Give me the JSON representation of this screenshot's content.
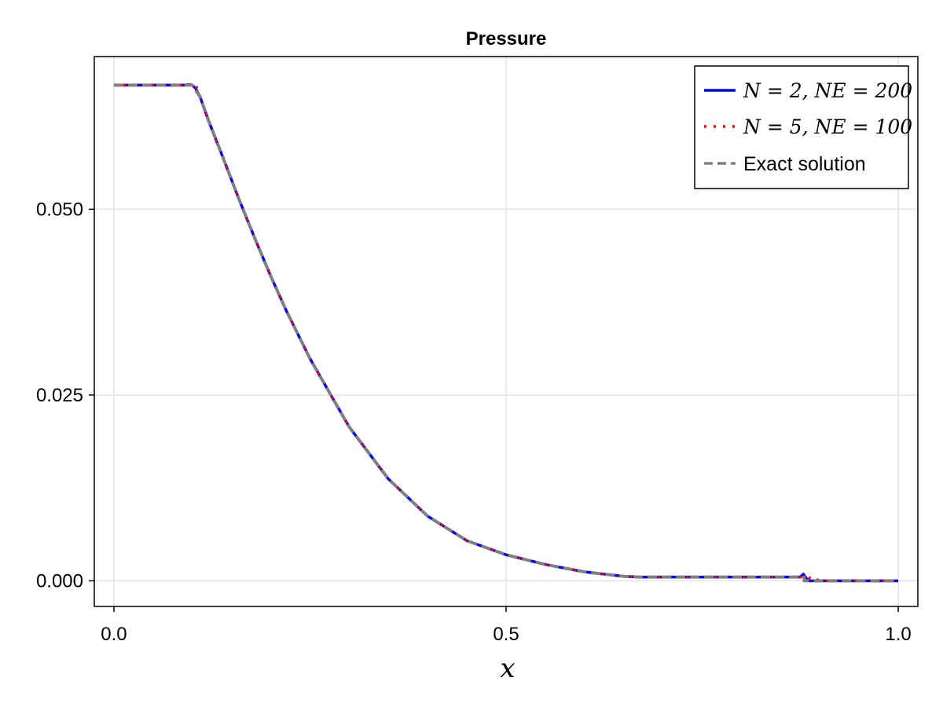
{
  "chart_data": {
    "type": "line",
    "title": "Pressure",
    "xlabel": "x",
    "ylabel": "",
    "xlim": [
      -0.025,
      1.025
    ],
    "ylim": [
      -0.00345,
      0.07055
    ],
    "xticks": [
      0.0,
      0.5,
      1.0
    ],
    "xtick_labels": [
      "0.0",
      "0.5",
      "1.0"
    ],
    "yticks": [
      0.0,
      0.025,
      0.05
    ],
    "ytick_labels": [
      "0.000",
      "0.025",
      "0.050"
    ],
    "grid": true,
    "legend_position": "top-right",
    "series": [
      {
        "name": "N = 2, NE = 200",
        "color": "#0000ff",
        "style": "solid",
        "x": [
          0.0,
          0.09,
          0.095,
          0.1,
          0.104,
          0.11,
          0.12,
          0.14,
          0.16,
          0.18,
          0.2,
          0.22,
          0.25,
          0.3,
          0.35,
          0.4,
          0.45,
          0.5,
          0.55,
          0.6,
          0.65,
          0.67,
          0.7,
          0.8,
          0.875,
          0.879,
          0.883,
          0.887,
          0.9,
          1.0
        ],
        "y": [
          0.0667,
          0.0667,
          0.0668,
          0.0667,
          0.0663,
          0.0651,
          0.0621,
          0.0567,
          0.0512,
          0.046,
          0.041,
          0.0363,
          0.0299,
          0.0207,
          0.0137,
          0.0087,
          0.0054,
          0.0035,
          0.0022,
          0.0012,
          0.0006,
          0.0005,
          0.0005,
          0.0005,
          0.0005,
          0.0009,
          0.0003,
          0.0,
          0.0,
          0.0
        ]
      },
      {
        "name": "N = 5, NE = 100",
        "color": "#ff0000",
        "style": "dotted",
        "x": [
          0.0,
          0.09,
          0.1,
          0.103,
          0.107,
          0.11,
          0.12,
          0.14,
          0.16,
          0.18,
          0.2,
          0.22,
          0.25,
          0.3,
          0.35,
          0.4,
          0.45,
          0.5,
          0.55,
          0.6,
          0.65,
          0.67,
          0.7,
          0.8,
          0.886,
          0.89,
          0.893,
          0.9,
          1.0
        ],
        "y": [
          0.0667,
          0.0667,
          0.0668,
          0.067,
          0.066,
          0.0651,
          0.0621,
          0.0567,
          0.0512,
          0.046,
          0.041,
          0.0363,
          0.0299,
          0.0207,
          0.0137,
          0.0087,
          0.0054,
          0.0035,
          0.0022,
          0.0012,
          0.0006,
          0.0005,
          0.0005,
          0.0005,
          0.0005,
          0.0001,
          0.0003,
          0.0,
          0.0
        ]
      },
      {
        "name": "Exact solution",
        "color": "#808080",
        "style": "dashed",
        "x": [
          0.0,
          0.1,
          0.11,
          0.12,
          0.14,
          0.16,
          0.18,
          0.2,
          0.22,
          0.25,
          0.3,
          0.35,
          0.4,
          0.45,
          0.5,
          0.55,
          0.6,
          0.65,
          0.67,
          0.7,
          0.8,
          0.88,
          0.8801,
          1.0
        ],
        "y": [
          0.0667,
          0.0667,
          0.0651,
          0.0621,
          0.0567,
          0.0512,
          0.046,
          0.041,
          0.0363,
          0.0299,
          0.0207,
          0.0137,
          0.0087,
          0.0054,
          0.0035,
          0.0022,
          0.0012,
          0.0006,
          0.0005,
          0.0005,
          0.0005,
          0.0005,
          0.0,
          0.0
        ]
      }
    ]
  }
}
